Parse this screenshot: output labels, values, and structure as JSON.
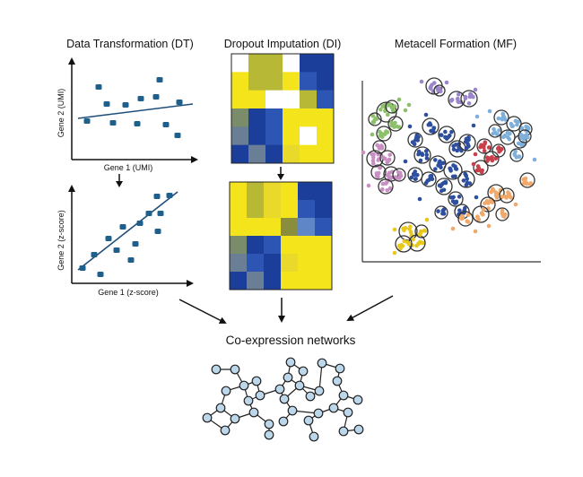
{
  "panels": {
    "dt": {
      "title": "Data Transformation (DT)",
      "top_plot": {
        "xlabel": "Gene 1 (UMI)",
        "ylabel": "Gene 2 (UMI)"
      },
      "bottom_plot": {
        "xlabel": "Gene 1 (z-score)",
        "ylabel": "Gene 2 (z-score)"
      }
    },
    "di": {
      "title": "Dropout Imputation (DI)"
    },
    "mf": {
      "title": "Metacell Formation (MF)"
    }
  },
  "network": {
    "title": "Co-expression networks"
  },
  "colors": {
    "point": "#1f5f8b",
    "regression_line": "#1f4e7a",
    "heatmap_blue": "#1a3f9c",
    "heatmap_yellow": "#f2e01a",
    "heatmap_olive": "#8f913a",
    "cluster_blue": "#2e4f9e",
    "cluster_red": "#c9404c",
    "cluster_pink": "#c98fc4",
    "cluster_green": "#8cc06a",
    "cluster_orange": "#f0a96a",
    "cluster_yellow": "#e9c81e",
    "cluster_purple": "#9a86c8",
    "cluster_lightblue": "#7fb0dc",
    "node_fill": "#bcd6ea"
  }
}
